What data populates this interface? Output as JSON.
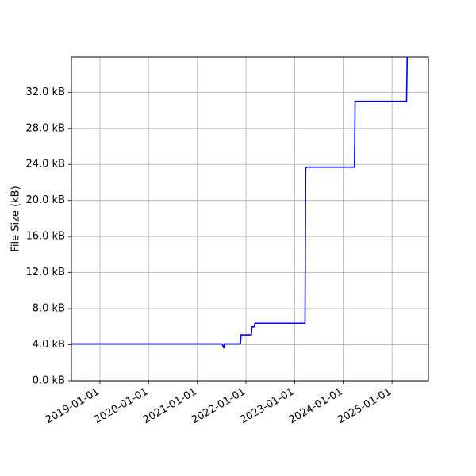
{
  "chart_data": {
    "type": "line",
    "title": "",
    "xlabel": "",
    "ylabel": "File Size (kB)",
    "xlim": [
      "2018-06-01",
      "2025-10-01"
    ],
    "ylim": [
      0.0,
      35.9
    ],
    "grid": true,
    "x_ticks": [
      "2019-01-01",
      "2020-01-01",
      "2021-01-01",
      "2022-01-01",
      "2023-01-01",
      "2024-01-01",
      "2025-01-01"
    ],
    "y_ticks": [
      {
        "value": 0.0,
        "label": "0.0 kB"
      },
      {
        "value": 4.0,
        "label": "4.0 kB"
      },
      {
        "value": 8.0,
        "label": "8.0 kB"
      },
      {
        "value": 12.0,
        "label": "12.0 kB"
      },
      {
        "value": 16.0,
        "label": "16.0 kB"
      },
      {
        "value": 20.0,
        "label": "20.0 kB"
      },
      {
        "value": 24.0,
        "label": "24.0 kB"
      },
      {
        "value": 28.0,
        "label": "28.0 kB"
      },
      {
        "value": 32.0,
        "label": "32.0 kB"
      }
    ],
    "line_color": "#0000ff",
    "series": [
      {
        "x": [
          "2018-06-01",
          "2021-07-05",
          "2021-07-20",
          "2021-07-22",
          "2021-08-01",
          "2021-11-20",
          "2021-11-25",
          "2022-02-10",
          "2022-02-15",
          "2022-03-05",
          "2022-03-10",
          "2023-03-20",
          "2023-03-25",
          "2023-03-28",
          "2023-03-30",
          "2024-03-25",
          "2024-03-30",
          "2025-04-20",
          "2025-04-25"
        ],
        "y": [
          4.1,
          4.1,
          3.6,
          4.1,
          4.1,
          4.1,
          5.1,
          5.1,
          6.0,
          6.0,
          6.4,
          6.4,
          23.6,
          23.6,
          23.7,
          23.7,
          31.0,
          31.0,
          35.9
        ]
      }
    ]
  }
}
